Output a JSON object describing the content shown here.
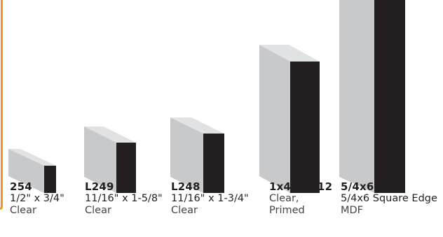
{
  "products": [
    {
      "code": "254",
      "size": "1/2\" x 3/4\"",
      "finish": [
        "Clear"
      ]
    },
    {
      "code": "L249",
      "size": "11/16\" x 1-5/8\"",
      "finish": [
        "Clear"
      ]
    },
    {
      "code": "L248",
      "size": "11/16\" x 1-3/4\"",
      "finish": [
        "Clear"
      ]
    },
    {
      "code": "1x4 - 1x12",
      "size": "",
      "finish": [
        "Clear,",
        "Primed"
      ]
    },
    {
      "code": "5/4x6",
      "size": "5/4x6 Square Edge",
      "finish": [
        "MDF"
      ]
    }
  ],
  "colors": {
    "accent": "#f7941d",
    "block_face": "#c8c9cb",
    "block_top": "#e1e2e3",
    "block_end": "#231f20"
  }
}
